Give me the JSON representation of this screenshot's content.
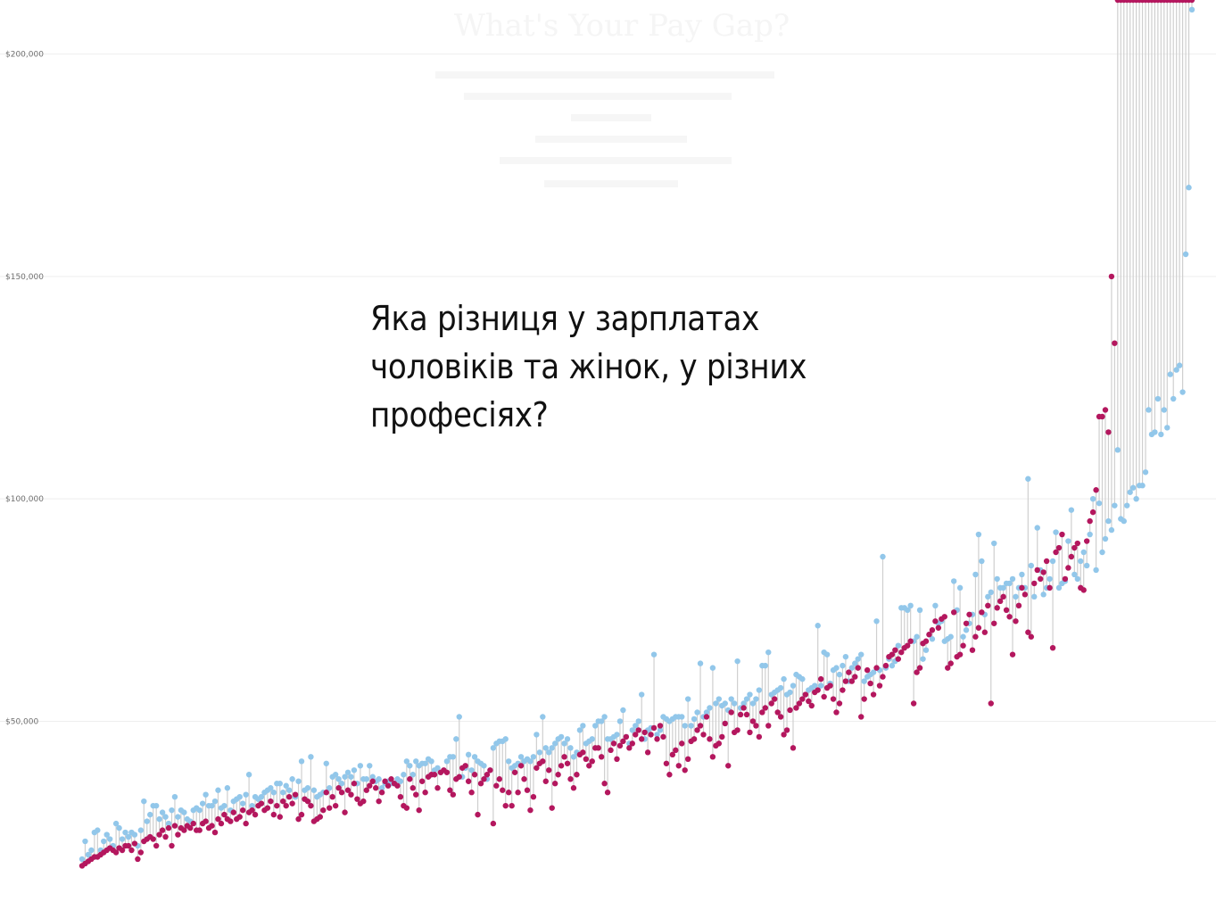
{
  "overlay": {
    "question": "Яка різниця у зарплатах чоловіків та жінок, у різних професіях?"
  },
  "chart_data": {
    "type": "scatter",
    "title": "What's Your Pay Gap?",
    "y_ticks": [
      "$50,000",
      "$100,000",
      "$150,000",
      "$200,000"
    ],
    "ylim": [
      14000,
      211000
    ],
    "grid": true,
    "colors": {
      "men": "#92c7ea",
      "women": "#b4175e",
      "stem": "#cfcfcf",
      "grid": "#eeeeee"
    },
    "series": [
      {
        "key": "men",
        "values": [
          19000,
          23000,
          20000,
          21000,
          25000,
          25500,
          21000,
          23000,
          24500,
          23500,
          22000,
          27000,
          26000,
          23500,
          25000,
          24000,
          25000,
          24500,
          22000,
          25500,
          32000,
          27500,
          29000,
          31000,
          31000,
          28000,
          29500,
          28500,
          27000,
          30000,
          33000,
          28500,
          30000,
          29500,
          28000,
          27500,
          30000,
          30500,
          30000,
          31500,
          33500,
          31000,
          31000,
          32000,
          34500,
          30500,
          31000,
          35000,
          30000,
          32000,
          32500,
          33000,
          31500,
          33500,
          38000,
          31000,
          33000,
          32500,
          33000,
          34000,
          34500,
          35000,
          34000,
          36000,
          36000,
          34000,
          35500,
          34500,
          37000,
          33000,
          36500,
          41000,
          34500,
          35000,
          42000,
          34500,
          33000,
          33500,
          34000,
          40500,
          35000,
          37500,
          38000,
          37000,
          36000,
          37500,
          38500,
          37500,
          39000,
          36000,
          40000,
          37000,
          37000,
          40000,
          37500,
          36500,
          37000,
          35000,
          36000,
          36500,
          36000,
          36000,
          37000,
          36500,
          38000,
          41000,
          40000,
          38000,
          41000,
          40000,
          40500,
          40500,
          41500,
          41000,
          39000,
          39500,
          38500,
          39000,
          41000,
          42000,
          42000,
          46000,
          51000,
          37500,
          39500,
          42500,
          39000,
          42000,
          41000,
          40500,
          40000,
          37000,
          39000,
          44000,
          45000,
          45500,
          45500,
          46000,
          41000,
          39500,
          40000,
          40500,
          42000,
          41000,
          41500,
          41000,
          42000,
          47000,
          43000,
          51000,
          44000,
          43000,
          44000,
          45000,
          46000,
          46500,
          45000,
          46000,
          44000,
          42000,
          43000,
          48000,
          49000,
          45000,
          45500,
          46000,
          49000,
          50000,
          50000,
          51000,
          46000,
          46000,
          46500,
          47000,
          50000,
          52500,
          46500,
          45000,
          48000,
          49000,
          50000,
          56000,
          46000,
          48000,
          48500,
          65000,
          47000,
          48000,
          51000,
          50500,
          50000,
          50500,
          51000,
          51000,
          51000,
          49000,
          55000,
          49000,
          50500,
          52000,
          63000,
          51000,
          52000,
          53000,
          62000,
          54000,
          55000,
          53500,
          54000,
          52500,
          55000,
          54000,
          63500,
          53000,
          54000,
          55000,
          56000,
          54000,
          55000,
          57000,
          62500,
          62500,
          65500,
          56000,
          56500,
          57000,
          57500,
          59500,
          56000,
          56500,
          58000,
          60500,
          60000,
          59500,
          56000,
          57000,
          57500,
          58000,
          71500,
          58000,
          65500,
          65000,
          58500,
          61500,
          62000,
          60500,
          62500,
          64500,
          59000,
          62000,
          63000,
          64000,
          65000,
          59000,
          60000,
          60500,
          61000,
          72500,
          61500,
          87000,
          62000,
          64000,
          62500,
          63500,
          67000,
          75500,
          75500,
          75000,
          76000,
          68000,
          69000,
          75000,
          64000,
          66000,
          69500,
          68500,
          76000,
          72000,
          72500,
          68000,
          68500,
          69000,
          81500,
          75000,
          80000,
          69000,
          70500,
          72000,
          74000,
          83000,
          92000,
          86000,
          74000,
          78000,
          79000,
          90000,
          82000,
          80000,
          80000,
          81000,
          81000,
          82000,
          78000,
          80000,
          83000,
          80000,
          104500,
          85000,
          78000,
          93500,
          84000,
          78500,
          80000,
          82000,
          86000,
          92500,
          80000,
          81000,
          81500,
          90500,
          97500,
          83000,
          82000,
          86000,
          88000,
          85000,
          92000,
          100000,
          84000,
          99000,
          88000,
          91000,
          95000,
          93000,
          98500,
          111000,
          95500,
          95000,
          98500,
          101500,
          102500,
          100000,
          103000,
          103000,
          106000,
          120000,
          114500,
          115000,
          122500,
          114500,
          120000,
          116000,
          128000,
          122500,
          129000,
          130000,
          124000,
          155000,
          170000,
          210000
        ]
      },
      {
        "key": "women",
        "values": [
          17500,
          18000,
          18500,
          19000,
          19500,
          19500,
          20000,
          20500,
          21000,
          21500,
          21000,
          20500,
          21500,
          21000,
          22000,
          22000,
          21000,
          22500,
          19000,
          20500,
          23000,
          23500,
          24000,
          23500,
          22000,
          24500,
          25500,
          24000,
          26000,
          22000,
          26500,
          24500,
          26000,
          25500,
          26500,
          26000,
          27000,
          25500,
          25500,
          27000,
          27500,
          26000,
          26500,
          25000,
          28000,
          27000,
          29000,
          28000,
          27500,
          29500,
          28000,
          28500,
          30000,
          27000,
          29500,
          30000,
          29000,
          31000,
          31500,
          30000,
          30500,
          32000,
          29000,
          31000,
          28500,
          32000,
          31000,
          33000,
          31500,
          33500,
          28000,
          29000,
          32500,
          32000,
          31000,
          27500,
          28000,
          28500,
          30000,
          34000,
          30500,
          33000,
          31000,
          35000,
          34000,
          29500,
          34500,
          33500,
          36000,
          32500,
          31500,
          32000,
          34500,
          35500,
          36500,
          35000,
          32000,
          34000,
          36500,
          35500,
          37000,
          36000,
          35500,
          33000,
          31000,
          30500,
          37000,
          35000,
          33500,
          30000,
          36500,
          34000,
          37500,
          38000,
          38000,
          35000,
          38500,
          39000,
          38500,
          34500,
          33500,
          37000,
          37500,
          39500,
          40000,
          36500,
          34000,
          38000,
          29000,
          36000,
          37000,
          38000,
          39000,
          27000,
          35500,
          37000,
          34500,
          31000,
          34000,
          31000,
          38500,
          34000,
          40000,
          37000,
          34500,
          30000,
          33000,
          39500,
          40500,
          41000,
          36500,
          39000,
          30500,
          36000,
          38000,
          40000,
          42000,
          40500,
          37000,
          35000,
          38000,
          42500,
          43000,
          41500,
          40000,
          41000,
          44000,
          44000,
          42000,
          36000,
          34000,
          43500,
          45000,
          41500,
          44500,
          45500,
          46500,
          44000,
          45000,
          47000,
          48000,
          46000,
          47500,
          43000,
          47000,
          48500,
          46000,
          49000,
          46500,
          40500,
          38000,
          42500,
          43500,
          40000,
          45000,
          39000,
          41500,
          45500,
          46000,
          48000,
          49000,
          47000,
          51000,
          46000,
          42000,
          44500,
          45000,
          46500,
          49500,
          40000,
          52000,
          47500,
          48000,
          51500,
          53000,
          51500,
          47500,
          50000,
          49000,
          46500,
          52000,
          53000,
          49000,
          54000,
          55000,
          52000,
          51000,
          47000,
          48000,
          52500,
          44000,
          53000,
          54000,
          55000,
          56000,
          54500,
          53500,
          56500,
          57000,
          59500,
          55500,
          57500,
          58000,
          55000,
          52000,
          54000,
          57000,
          59000,
          61000,
          59000,
          60000,
          62000,
          51000,
          55000,
          61500,
          58500,
          56000,
          62000,
          58000,
          60000,
          62500,
          64500,
          65000,
          66000,
          64000,
          65500,
          66500,
          67000,
          68000,
          54000,
          61000,
          62000,
          67500,
          68000,
          69500,
          70500,
          72500,
          71000,
          73000,
          73500,
          62000,
          63000,
          74500,
          64500,
          65000,
          67000,
          72000,
          74000,
          66000,
          69000,
          71000,
          74500,
          70000,
          76000,
          54000,
          72000,
          75500,
          77000,
          78000,
          75000,
          73500,
          65000,
          72500,
          76000,
          80000,
          78500,
          70000,
          69000,
          81000,
          84000,
          82000,
          83500,
          86000,
          80000,
          66500,
          88000,
          89000,
          92000,
          82000,
          84500,
          87000,
          89000,
          90000,
          80000,
          79500,
          90500,
          95000,
          97000,
          102000,
          118500,
          118500,
          120000,
          115000,
          150000,
          135000
        ]
      }
    ]
  }
}
